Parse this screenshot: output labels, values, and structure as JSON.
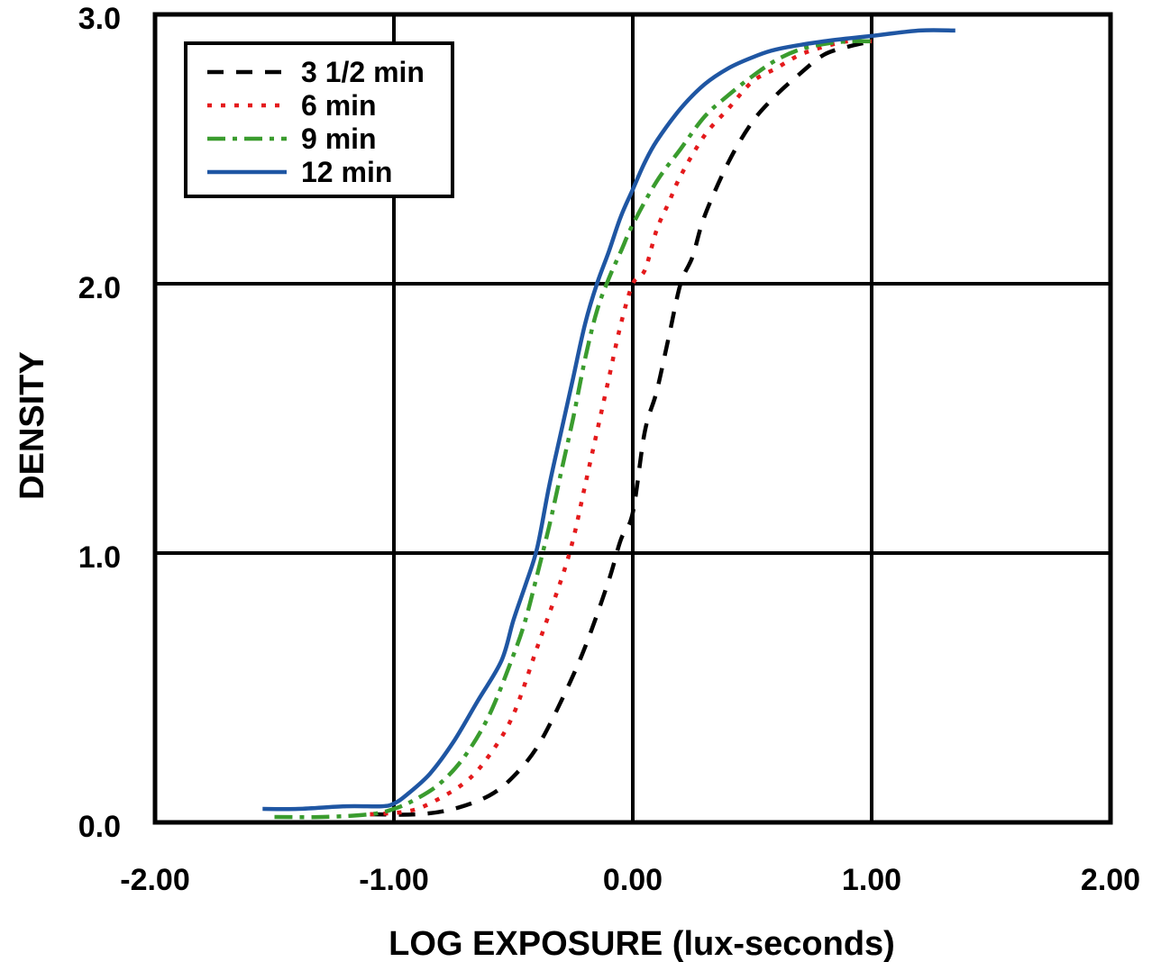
{
  "chart_data": {
    "type": "line",
    "title": "",
    "xlabel": "LOG EXPOSURE (lux-seconds)",
    "ylabel": "DENSITY",
    "xlim": [
      -2.0,
      2.0
    ],
    "ylim": [
      0.0,
      3.0
    ],
    "x_ticks": [
      -2.0,
      -1.0,
      0.0,
      1.0,
      2.0
    ],
    "x_tick_labels": [
      "-2.00",
      "-1.00",
      "0.00",
      "1.00",
      "2.00"
    ],
    "y_ticks": [
      0.0,
      1.0,
      2.0,
      3.0
    ],
    "y_tick_labels": [
      "0.0",
      "1.0",
      "2.0",
      "3.0"
    ],
    "grid": true,
    "legend_position": "top-left",
    "series": [
      {
        "name": "3 1/2 min",
        "color": "#000000",
        "dash": "dashed",
        "x": [
          -1.1,
          -0.9,
          -0.75,
          -0.6,
          -0.5,
          -0.4,
          -0.3,
          -0.2,
          -0.1,
          -0.05,
          0.0,
          0.05,
          0.1,
          0.15,
          0.2,
          0.25,
          0.3,
          0.4,
          0.5,
          0.6,
          0.7,
          0.8,
          0.9,
          1.0
        ],
        "y": [
          0.03,
          0.03,
          0.05,
          0.1,
          0.17,
          0.28,
          0.45,
          0.65,
          0.9,
          1.05,
          1.15,
          1.45,
          1.6,
          1.8,
          2.0,
          2.1,
          2.25,
          2.45,
          2.6,
          2.7,
          2.78,
          2.85,
          2.88,
          2.9
        ]
      },
      {
        "name": "6 min",
        "color": "#e41a1c",
        "dash": "dotted",
        "x": [
          -1.1,
          -0.95,
          -0.85,
          -0.7,
          -0.6,
          -0.5,
          -0.4,
          -0.3,
          -0.25,
          -0.2,
          -0.15,
          -0.1,
          -0.05,
          0.0,
          0.05,
          0.1,
          0.15,
          0.2,
          0.3,
          0.4,
          0.5,
          0.6,
          0.7,
          0.8,
          0.9,
          1.0
        ],
        "y": [
          0.03,
          0.04,
          0.07,
          0.15,
          0.25,
          0.4,
          0.65,
          0.9,
          1.05,
          1.25,
          1.45,
          1.65,
          1.85,
          2.0,
          2.05,
          2.2,
          2.3,
          2.4,
          2.55,
          2.65,
          2.75,
          2.8,
          2.85,
          2.88,
          2.9,
          2.9
        ]
      },
      {
        "name": "9 min",
        "color": "#3a9c2e",
        "dash": "dashdot",
        "x": [
          -1.5,
          -1.3,
          -1.1,
          -1.0,
          -0.9,
          -0.8,
          -0.7,
          -0.6,
          -0.5,
          -0.45,
          -0.4,
          -0.35,
          -0.3,
          -0.25,
          -0.2,
          -0.15,
          -0.1,
          -0.05,
          0.0,
          0.1,
          0.2,
          0.3,
          0.4,
          0.5,
          0.6,
          0.7,
          0.8,
          0.9,
          1.0
        ],
        "y": [
          0.02,
          0.02,
          0.03,
          0.05,
          0.09,
          0.15,
          0.25,
          0.4,
          0.62,
          0.75,
          0.92,
          1.1,
          1.3,
          1.5,
          1.72,
          1.9,
          2.02,
          2.12,
          2.22,
          2.38,
          2.5,
          2.62,
          2.7,
          2.77,
          2.83,
          2.87,
          2.89,
          2.9,
          2.9
        ]
      },
      {
        "name": "12 min",
        "color": "#1f56a3",
        "dash": "solid",
        "x": [
          -1.55,
          -1.4,
          -1.2,
          -1.05,
          -1.0,
          -0.95,
          -0.85,
          -0.75,
          -0.65,
          -0.55,
          -0.5,
          -0.45,
          -0.4,
          -0.35,
          -0.3,
          -0.25,
          -0.2,
          -0.15,
          -0.1,
          -0.05,
          0.0,
          0.05,
          0.1,
          0.2,
          0.3,
          0.4,
          0.5,
          0.6,
          0.8,
          1.0,
          1.2,
          1.35
        ],
        "y": [
          0.05,
          0.05,
          0.06,
          0.06,
          0.07,
          0.1,
          0.18,
          0.3,
          0.45,
          0.6,
          0.75,
          0.88,
          1.02,
          1.25,
          1.45,
          1.65,
          1.85,
          2.0,
          2.12,
          2.25,
          2.35,
          2.45,
          2.53,
          2.65,
          2.74,
          2.8,
          2.84,
          2.87,
          2.9,
          2.92,
          2.94,
          2.94
        ]
      }
    ]
  }
}
